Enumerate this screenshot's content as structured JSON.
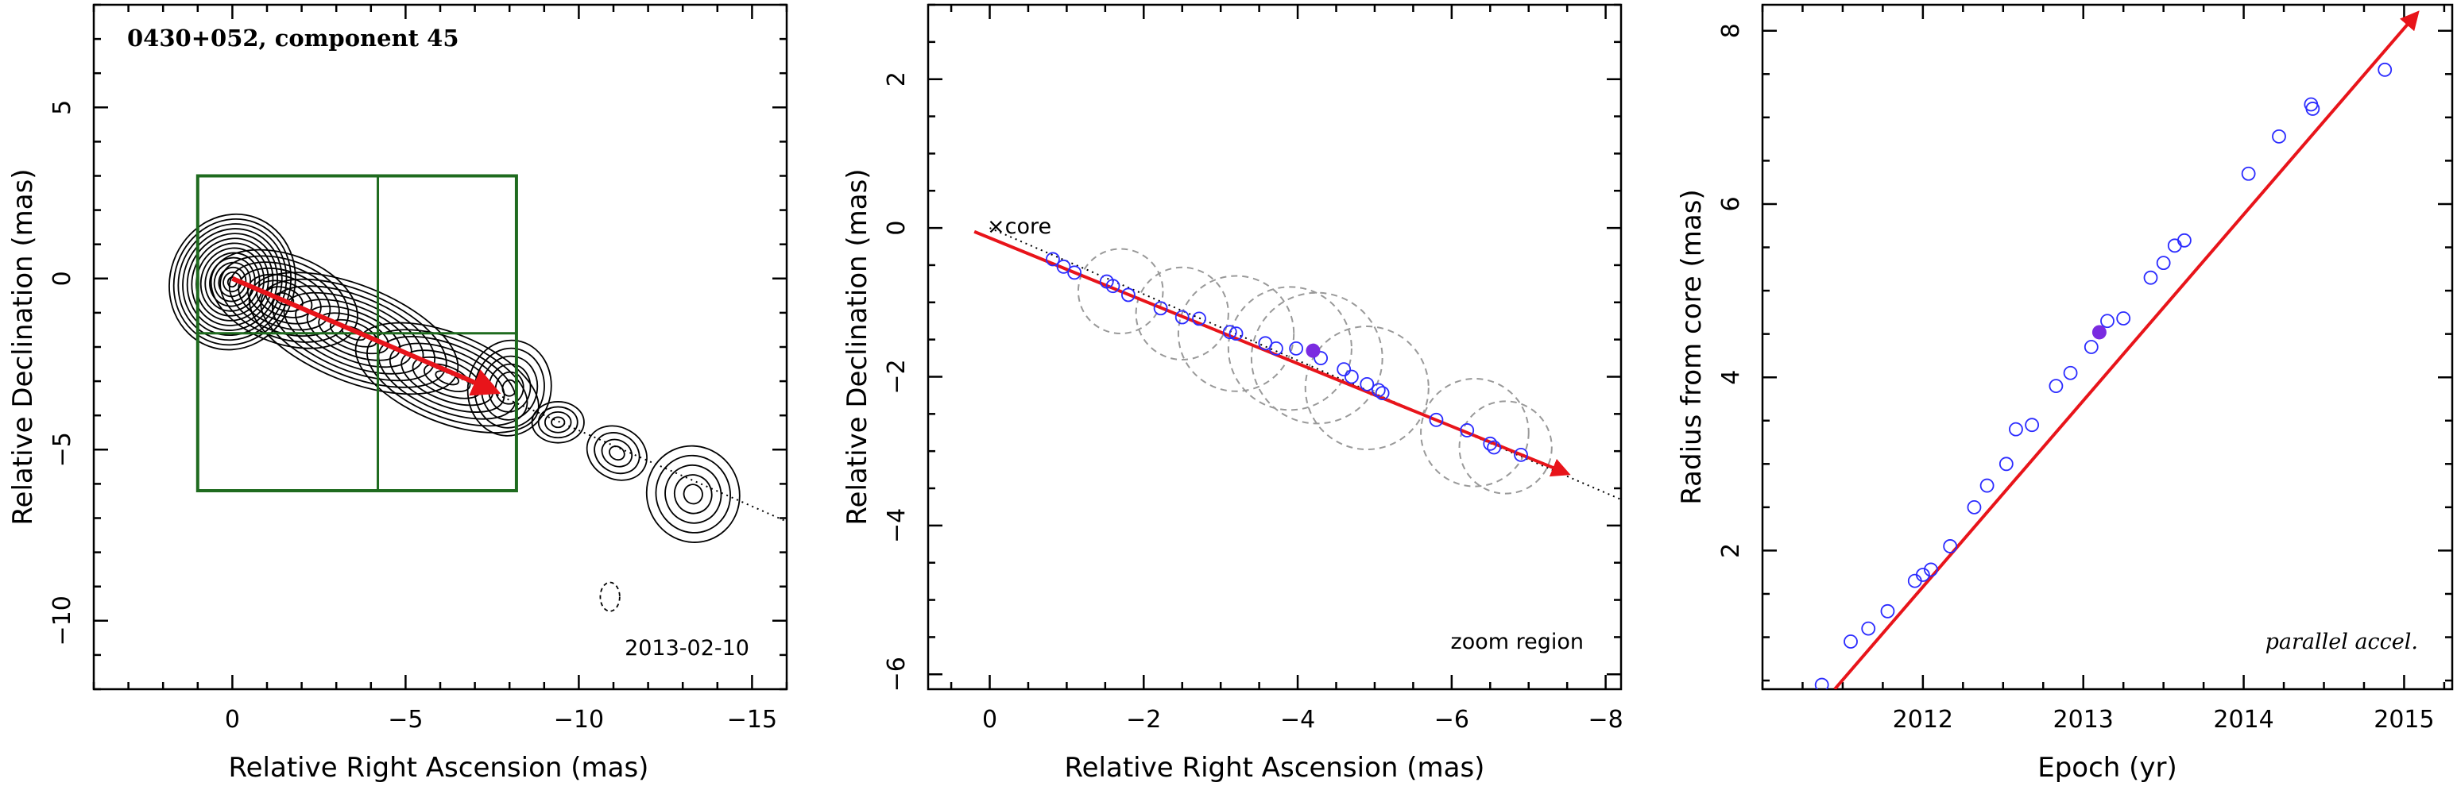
{
  "chart_data": [
    {
      "type": "contour",
      "title": "0430+052, component 45",
      "xlabel": "Relative Right Ascension (mas)",
      "ylabel": "Relative Declination (mas)",
      "xlim": [
        4,
        -16
      ],
      "ylim": [
        -12,
        8
      ],
      "xticks": [
        0,
        -5,
        -10,
        -15
      ],
      "yticks": [
        -10,
        -5,
        0,
        5
      ],
      "annotation": "2013-02-10",
      "colors": {
        "contour": "#000000",
        "box": "#1f6b1f",
        "arrow": "#e8141a"
      },
      "zoom_box": {
        "ra": [
          1,
          -8.2
        ],
        "dec": [
          3,
          -6.2
        ],
        "cross_ra": -4.2,
        "cross_dec": -1.6
      },
      "vector": {
        "from": [
          0,
          0
        ],
        "to": [
          -7.6,
          -3.3
        ]
      },
      "jet_axis": {
        "from": [
          0,
          0
        ],
        "to": [
          -16,
          -7.1
        ]
      }
    },
    {
      "type": "scatter",
      "xlabel": "Relative Right Ascension (mas)",
      "ylabel": "Relative Declination (mas)",
      "xlim": [
        0.8,
        -8.2
      ],
      "ylim": [
        -6.2,
        3
      ],
      "xticks": [
        0,
        -2,
        -4,
        -6,
        -8
      ],
      "yticks": [
        -6,
        -4,
        -2,
        0,
        2
      ],
      "core_label": "×core",
      "annotation": "zoom region",
      "points": [
        {
          "x": -0.82,
          "y": -0.42
        },
        {
          "x": -0.96,
          "y": -0.52
        },
        {
          "x": -1.1,
          "y": -0.6
        },
        {
          "x": -1.52,
          "y": -0.72
        },
        {
          "x": -1.6,
          "y": -0.78
        },
        {
          "x": -1.8,
          "y": -0.9
        },
        {
          "x": -2.22,
          "y": -1.08
        },
        {
          "x": -2.5,
          "y": -1.2
        },
        {
          "x": -2.72,
          "y": -1.22
        },
        {
          "x": -3.12,
          "y": -1.4
        },
        {
          "x": -3.2,
          "y": -1.42
        },
        {
          "x": -3.58,
          "y": -1.55
        },
        {
          "x": -3.72,
          "y": -1.62
        },
        {
          "x": -3.98,
          "y": -1.62
        },
        {
          "x": -4.3,
          "y": -1.75
        },
        {
          "x": -4.6,
          "y": -1.9
        },
        {
          "x": -4.7,
          "y": -2.0
        },
        {
          "x": -4.9,
          "y": -2.1
        },
        {
          "x": -5.05,
          "y": -2.18
        },
        {
          "x": -5.1,
          "y": -2.22
        },
        {
          "x": -5.8,
          "y": -2.58
        },
        {
          "x": -6.2,
          "y": -2.72
        },
        {
          "x": -6.5,
          "y": -2.9
        },
        {
          "x": -6.55,
          "y": -2.95
        },
        {
          "x": -6.9,
          "y": -3.05
        }
      ],
      "highlight": {
        "x": -4.2,
        "y": -1.65
      },
      "sizes": [
        {
          "x": -1.7,
          "y": -0.85,
          "r": 0.55
        },
        {
          "x": -2.5,
          "y": -1.15,
          "r": 0.6
        },
        {
          "x": -3.2,
          "y": -1.42,
          "r": 0.75
        },
        {
          "x": -3.9,
          "y": -1.62,
          "r": 0.8
        },
        {
          "x": -4.25,
          "y": -1.75,
          "r": 0.85
        },
        {
          "x": -4.9,
          "y": -2.15,
          "r": 0.8
        },
        {
          "x": -6.3,
          "y": -2.75,
          "r": 0.7
        },
        {
          "x": -6.7,
          "y": -2.95,
          "r": 0.6
        }
      ],
      "vector": {
        "from": [
          0.2,
          -0.05
        ],
        "to": [
          -7.5,
          -3.3
        ]
      },
      "jet_axis": {
        "from": [
          0,
          0
        ],
        "to": [
          -8.2,
          -3.65
        ]
      },
      "colors": {
        "points": "#2b2bff",
        "highlight": "#7a2be0",
        "circles": "#999999",
        "arrow": "#e8141a"
      }
    },
    {
      "type": "scatter",
      "xlabel": "Epoch (yr)",
      "ylabel": "Radius from core (mas)",
      "xlim": [
        2011,
        2015.3
      ],
      "ylim": [
        0.4,
        8.3
      ],
      "xticks": [
        2012,
        2013,
        2014,
        2015
      ],
      "yticks": [
        2,
        4,
        6,
        8
      ],
      "annotation": "parallel accel.",
      "points": [
        {
          "x": 2011.37,
          "y": 0.45
        },
        {
          "x": 2011.55,
          "y": 0.95
        },
        {
          "x": 2011.66,
          "y": 1.1
        },
        {
          "x": 2011.78,
          "y": 1.3
        },
        {
          "x": 2011.95,
          "y": 1.65
        },
        {
          "x": 2012.0,
          "y": 1.72
        },
        {
          "x": 2012.05,
          "y": 1.78
        },
        {
          "x": 2012.17,
          "y": 2.05
        },
        {
          "x": 2012.32,
          "y": 2.5
        },
        {
          "x": 2012.4,
          "y": 2.75
        },
        {
          "x": 2012.52,
          "y": 3.0
        },
        {
          "x": 2012.58,
          "y": 3.4
        },
        {
          "x": 2012.68,
          "y": 3.45
        },
        {
          "x": 2012.83,
          "y": 3.9
        },
        {
          "x": 2012.92,
          "y": 4.05
        },
        {
          "x": 2013.05,
          "y": 4.35
        },
        {
          "x": 2013.15,
          "y": 4.65
        },
        {
          "x": 2013.25,
          "y": 4.68
        },
        {
          "x": 2013.42,
          "y": 5.15
        },
        {
          "x": 2013.5,
          "y": 5.32
        },
        {
          "x": 2013.57,
          "y": 5.52
        },
        {
          "x": 2013.63,
          "y": 5.58
        },
        {
          "x": 2014.03,
          "y": 6.35
        },
        {
          "x": 2014.22,
          "y": 6.78
        },
        {
          "x": 2014.42,
          "y": 7.15
        },
        {
          "x": 2014.43,
          "y": 7.1
        },
        {
          "x": 2014.88,
          "y": 7.55
        }
      ],
      "highlight": {
        "x": 2013.1,
        "y": 4.52
      },
      "fit": {
        "from": [
          2011.45,
          0.4
        ],
        "to": [
          2015.08,
          8.2
        ]
      },
      "colors": {
        "points": "#2b2bff",
        "highlight": "#7a2be0",
        "arrow": "#e8141a"
      }
    }
  ]
}
